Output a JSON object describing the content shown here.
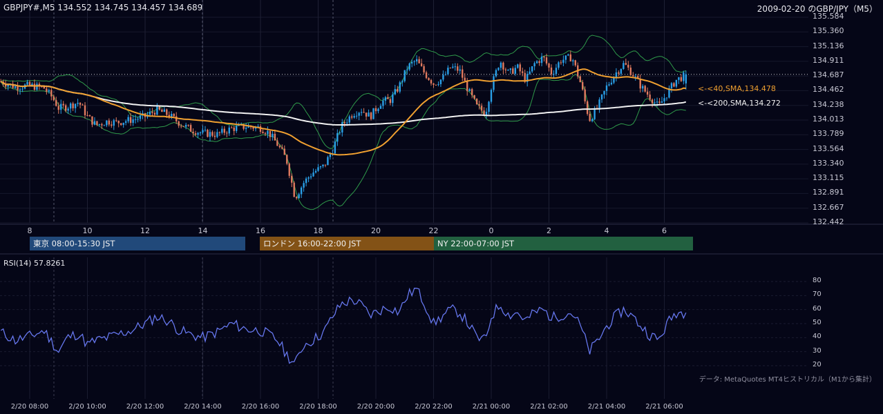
{
  "header": {
    "symbol_line": "GBPJPY#,M5 134.552 134.745 134.457 134.689",
    "title_right": "2009-02-20 のGBP/JPY（M5）"
  },
  "colors": {
    "background": "#050617",
    "bull": "#2aa0e8",
    "bear": "#e07a5f",
    "bb": "#2f9a4a",
    "sma40": "#f0a030",
    "sma200": "#f2f2f2",
    "rsi": "#6677ee",
    "tokyo": "#21497a",
    "london": "#835216",
    "ny": "#226040"
  },
  "price_axis": [
    "135.584",
    "135.360",
    "135.136",
    "134.911",
    "134.687",
    "134.462",
    "134.238",
    "134.013",
    "133.789",
    "133.564",
    "133.340",
    "133.115",
    "132.891",
    "132.667",
    "132.442"
  ],
  "ma_labels": {
    "sma40": "<-<40,SMA,134.478",
    "sma200": "<-<200,SMA,134.272"
  },
  "x_axis_hours": [
    "8",
    "10",
    "12",
    "14",
    "16",
    "18",
    "20",
    "22",
    "0",
    "2",
    "4",
    "6"
  ],
  "sessions": [
    {
      "label": "東京 08:00-15:30 JST"
    },
    {
      "label": "ロンドン 16:00-22:00 JST"
    },
    {
      "label": "NY 22:00-07:00 JST"
    }
  ],
  "rsi": {
    "label": "RSI(14) 57.8261",
    "axis": [
      "80",
      "70",
      "60",
      "50",
      "40",
      "30",
      "20"
    ]
  },
  "bottom_axis": [
    "2/20 08:00",
    "2/20 10:00",
    "2/20 12:00",
    "2/20 14:00",
    "2/20 16:00",
    "2/20 18:00",
    "2/20 20:00",
    "2/20 22:00",
    "2/21 00:00",
    "2/21 02:00",
    "2/21 04:00",
    "2/21 06:00"
  ],
  "footnote": "データ: MetaQuotes MT4ヒストリカル（M1から集計）",
  "chart_data": {
    "type": "candlestick",
    "title": "2009-02-20 のGBP/JPY（M5）",
    "ylim": [
      132.442,
      135.584
    ],
    "last_bar": {
      "open": 134.552,
      "high": 134.745,
      "low": 134.457,
      "close": 134.689
    },
    "sma40_last": 134.478,
    "sma200_last": 134.272,
    "rsi_last": 57.8261,
    "rsi_ylim": [
      20,
      80
    ],
    "hours": [
      8,
      10,
      12,
      14,
      16,
      18,
      20,
      22,
      0,
      2,
      4,
      6
    ],
    "close_path": [
      [
        7.0,
        134.58
      ],
      [
        7.5,
        134.5
      ],
      [
        8.0,
        134.52
      ],
      [
        8.5,
        134.48
      ],
      [
        8.8,
        134.33
      ],
      [
        9.0,
        134.18
      ],
      [
        9.3,
        134.2
      ],
      [
        9.7,
        134.27
      ],
      [
        10.0,
        134.05
      ],
      [
        10.3,
        133.92
      ],
      [
        10.7,
        133.98
      ],
      [
        11.0,
        133.96
      ],
      [
        11.5,
        134.0
      ],
      [
        12.0,
        134.05
      ],
      [
        12.4,
        134.15
      ],
      [
        12.8,
        134.08
      ],
      [
        13.2,
        133.95
      ],
      [
        13.6,
        133.85
      ],
      [
        14.0,
        133.8
      ],
      [
        14.5,
        133.78
      ],
      [
        15.0,
        133.87
      ],
      [
        15.5,
        133.9
      ],
      [
        16.0,
        133.88
      ],
      [
        16.3,
        133.8
      ],
      [
        16.6,
        133.62
      ],
      [
        16.9,
        133.4
      ],
      [
        17.2,
        132.82
      ],
      [
        17.5,
        133.05
      ],
      [
        17.8,
        133.2
      ],
      [
        18.2,
        133.3
      ],
      [
        18.5,
        133.55
      ],
      [
        18.8,
        133.9
      ],
      [
        19.2,
        134.1
      ],
      [
        19.5,
        134.15
      ],
      [
        19.8,
        134.05
      ],
      [
        20.2,
        134.28
      ],
      [
        20.5,
        134.3
      ],
      [
        20.8,
        134.5
      ],
      [
        21.1,
        134.8
      ],
      [
        21.4,
        134.9
      ],
      [
        21.7,
        134.7
      ],
      [
        22.0,
        134.55
      ],
      [
        22.3,
        134.62
      ],
      [
        22.6,
        134.8
      ],
      [
        22.9,
        134.75
      ],
      [
        23.2,
        134.45
      ],
      [
        23.5,
        134.2
      ],
      [
        23.8,
        134.1
      ],
      [
        24.0,
        134.5
      ],
      [
        24.3,
        134.9
      ],
      [
        24.6,
        134.7
      ],
      [
        24.9,
        134.8
      ],
      [
        25.2,
        134.6
      ],
      [
        25.5,
        134.85
      ],
      [
        25.8,
        134.95
      ],
      [
        26.1,
        134.7
      ],
      [
        26.4,
        134.9
      ],
      [
        26.8,
        134.95
      ],
      [
        27.1,
        134.55
      ],
      [
        27.4,
        134.0
      ],
      [
        27.7,
        134.2
      ],
      [
        28.0,
        134.5
      ],
      [
        28.3,
        134.7
      ],
      [
        28.6,
        134.85
      ],
      [
        28.9,
        134.7
      ],
      [
        29.2,
        134.5
      ],
      [
        29.5,
        134.35
      ],
      [
        29.8,
        134.2
      ],
      [
        30.1,
        134.4
      ],
      [
        30.4,
        134.6
      ],
      [
        30.8,
        134.69
      ]
    ],
    "rsi_path": [
      [
        7.0,
        44
      ],
      [
        7.5,
        38
      ],
      [
        8.0,
        41
      ],
      [
        8.5,
        45
      ],
      [
        8.8,
        36
      ],
      [
        9.0,
        30
      ],
      [
        9.3,
        40
      ],
      [
        9.7,
        43
      ],
      [
        10.0,
        35
      ],
      [
        10.3,
        38
      ],
      [
        10.7,
        40
      ],
      [
        11.0,
        42
      ],
      [
        11.5,
        45
      ],
      [
        12.0,
        50
      ],
      [
        12.4,
        55
      ],
      [
        12.8,
        52
      ],
      [
        13.2,
        45
      ],
      [
        13.6,
        42
      ],
      [
        14.0,
        40
      ],
      [
        14.5,
        44
      ],
      [
        15.0,
        50
      ],
      [
        15.5,
        46
      ],
      [
        16.0,
        45
      ],
      [
        16.3,
        42
      ],
      [
        16.6,
        38
      ],
      [
        16.9,
        28
      ],
      [
        17.2,
        21
      ],
      [
        17.5,
        35
      ],
      [
        17.8,
        38
      ],
      [
        18.2,
        44
      ],
      [
        18.5,
        55
      ],
      [
        18.8,
        64
      ],
      [
        19.2,
        67
      ],
      [
        19.5,
        63
      ],
      [
        19.8,
        56
      ],
      [
        20.2,
        60
      ],
      [
        20.5,
        62
      ],
      [
        20.8,
        58
      ],
      [
        21.1,
        70
      ],
      [
        21.4,
        75
      ],
      [
        21.7,
        64
      ],
      [
        22.0,
        50
      ],
      [
        22.3,
        55
      ],
      [
        22.6,
        60
      ],
      [
        22.9,
        58
      ],
      [
        23.2,
        50
      ],
      [
        23.5,
        40
      ],
      [
        23.8,
        38
      ],
      [
        24.0,
        55
      ],
      [
        24.3,
        64
      ],
      [
        24.6,
        56
      ],
      [
        24.9,
        58
      ],
      [
        25.2,
        52
      ],
      [
        25.5,
        58
      ],
      [
        25.8,
        60
      ],
      [
        26.1,
        54
      ],
      [
        26.4,
        56
      ],
      [
        26.8,
        58
      ],
      [
        27.1,
        48
      ],
      [
        27.4,
        30
      ],
      [
        27.7,
        38
      ],
      [
        28.0,
        48
      ],
      [
        28.3,
        55
      ],
      [
        28.6,
        60
      ],
      [
        28.9,
        55
      ],
      [
        29.2,
        48
      ],
      [
        29.5,
        42
      ],
      [
        29.8,
        38
      ],
      [
        30.1,
        50
      ],
      [
        30.4,
        58
      ],
      [
        30.8,
        57.8
      ]
    ]
  }
}
